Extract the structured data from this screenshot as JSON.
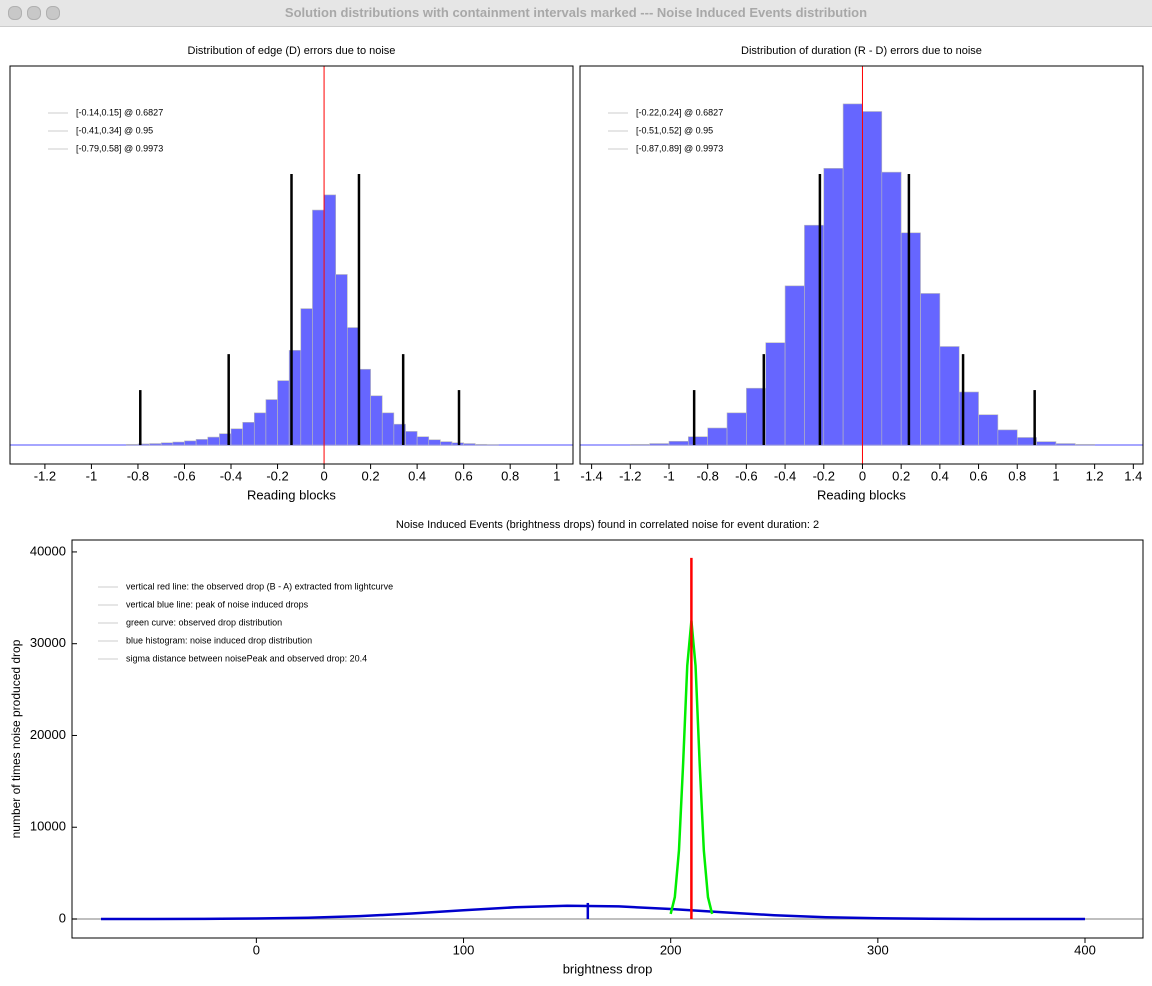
{
  "window": {
    "title": "Solution distributions with containment intervals marked --- Noise Induced Events distribution"
  },
  "chart_data": [
    {
      "type": "histogram",
      "title": "Distribution of edge (D) errors due to noise",
      "x_label": "Reading blocks",
      "bins": [
        -1.0,
        -0.95,
        -0.9,
        -0.85,
        -0.8,
        -0.75,
        -0.7,
        -0.65,
        -0.6,
        -0.55,
        -0.5,
        -0.45,
        -0.4,
        -0.35,
        -0.3,
        -0.25,
        -0.2,
        -0.15,
        -0.1,
        -0.05,
        0,
        0.05,
        0.1,
        0.15,
        0.2,
        0.25,
        0.3,
        0.35,
        0.4,
        0.45,
        0.5,
        0.55,
        0.6,
        0.65,
        0.7,
        0.75,
        0.8,
        0.85,
        0.9,
        0.95,
        1.0
      ],
      "values": [
        0,
        0,
        0,
        0.002,
        0.003,
        0.004,
        0.006,
        0.008,
        0.011,
        0.015,
        0.021,
        0.03,
        0.043,
        0.06,
        0.085,
        0.12,
        0.17,
        0.25,
        0.36,
        0.62,
        0.66,
        0.45,
        0.31,
        0.2,
        0.13,
        0.085,
        0.055,
        0.036,
        0.022,
        0.014,
        0.009,
        0.006,
        0.004,
        0.002,
        0.001,
        0,
        0,
        0,
        0,
        0
      ],
      "color": "#6666ff",
      "xlim": [
        -1.35,
        1.07
      ],
      "ylim": [
        -0.05,
        1.0
      ],
      "xticks": [
        -1.2,
        -1,
        -0.8,
        -0.6,
        -0.4,
        -0.2,
        0,
        0.2,
        0.4,
        0.6,
        0.8,
        1
      ],
      "legend": [
        "[-0.14,0.15] @ 0.6827",
        "[-0.41,0.34] @ 0.95",
        "[-0.79,0.58] @ 0.9973"
      ],
      "intervals": [
        {
          "low": -0.14,
          "high": 0.15,
          "height": 0.715
        },
        {
          "low": -0.41,
          "high": 0.34,
          "height": 0.24
        },
        {
          "low": -0.79,
          "high": 0.58,
          "height": 0.145
        }
      ],
      "center_line": {
        "x": 0,
        "color": "#ff0000"
      }
    },
    {
      "type": "histogram",
      "title": "Distribution of duration (R - D) errors due to noise",
      "x_label": "Reading blocks",
      "bins": [
        -1.2,
        -1.1,
        -1.0,
        -0.9,
        -0.8,
        -0.7,
        -0.6,
        -0.5,
        -0.4,
        -0.3,
        -0.2,
        -0.1,
        0,
        0.1,
        0.2,
        0.3,
        0.4,
        0.5,
        0.6,
        0.7,
        0.8,
        0.9,
        1.0,
        1.1,
        1.2
      ],
      "values": [
        0.002,
        0.004,
        0.01,
        0.022,
        0.045,
        0.085,
        0.15,
        0.27,
        0.42,
        0.58,
        0.73,
        0.9,
        0.88,
        0.72,
        0.56,
        0.4,
        0.26,
        0.14,
        0.08,
        0.04,
        0.02,
        0.009,
        0.004,
        0.002
      ],
      "color": "#6666ff",
      "xlim": [
        -1.46,
        1.45
      ],
      "ylim": [
        -0.05,
        1.0
      ],
      "xticks": [
        -1.4,
        -1.2,
        -1,
        -0.8,
        -0.6,
        -0.4,
        -0.2,
        0,
        0.2,
        0.4,
        0.6,
        0.8,
        1,
        1.2,
        1.4
      ],
      "legend": [
        "[-0.22,0.24] @ 0.6827",
        "[-0.51,0.52] @ 0.95",
        "[-0.87,0.89] @ 0.9973"
      ],
      "intervals": [
        {
          "low": -0.22,
          "high": 0.24,
          "height": 0.715
        },
        {
          "low": -0.51,
          "high": 0.52,
          "height": 0.24
        },
        {
          "low": -0.87,
          "high": 0.89,
          "height": 0.145
        }
      ],
      "center_line": {
        "x": 0,
        "color": "#ff0000"
      }
    },
    {
      "type": "line",
      "title": "Noise Induced Events (brightness drops) found in correlated noise for event duration: 2",
      "x_label": "brightness drop",
      "y_label": "number of times noise produced drop",
      "xlim": [
        -89,
        428
      ],
      "ylim": [
        -2070,
        41300
      ],
      "xticks": [
        0,
        100,
        200,
        300,
        400
      ],
      "yticks": [
        0,
        10000,
        20000,
        30000,
        40000
      ],
      "legend": [
        "vertical red line: the observed drop (B - A) extracted from lightcurve",
        "vertical blue line: peak of noise induced drops",
        "green curve: observed drop distribution",
        "blue histogram: noise induced drop distribution",
        "sigma distance between noisePeak and observed drop: 20.4"
      ],
      "series": [
        {
          "color": "#0000cc",
          "x": [
            -75,
            -50,
            -25,
            0,
            25,
            50,
            75,
            100,
            125,
            150,
            175,
            200,
            225,
            250,
            275,
            300,
            325,
            350,
            375,
            400
          ],
          "values": [
            1,
            4,
            16,
            51,
            139,
            314,
            596,
            953,
            1279,
            1445,
            1372,
            1095,
            734,
            414,
            196,
            78,
            26,
            7,
            2,
            0
          ]
        },
        {
          "color": "#00ee00",
          "x": [
            200,
            202,
            204,
            206,
            208,
            210,
            212,
            214,
            216,
            218,
            220
          ],
          "values": [
            549,
            2386,
            7475,
            16900,
            27600,
            32500,
            27600,
            16900,
            7475,
            2386,
            549
          ]
        }
      ],
      "markers": [
        {
          "x": 160,
          "height": 1750,
          "color": "#0000cc"
        },
        {
          "x": 210,
          "height": 39350,
          "color": "#ff0000"
        }
      ]
    }
  ]
}
